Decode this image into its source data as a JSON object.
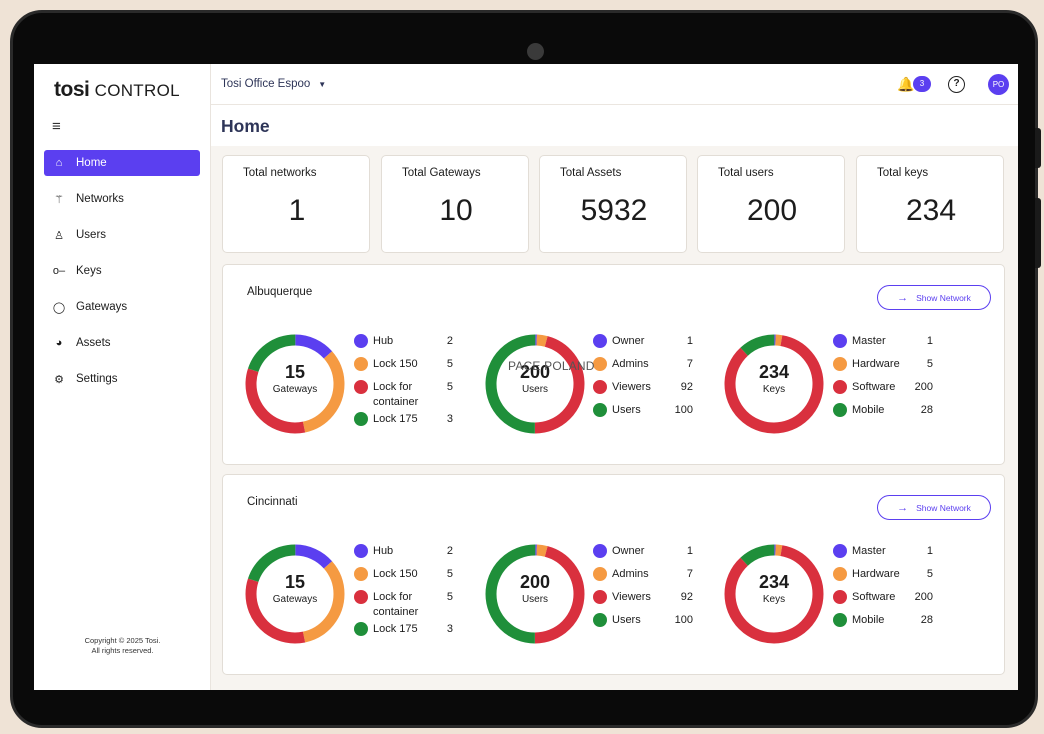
{
  "brand": {
    "logo_bold": "tosi",
    "logo_light": "CONTROL"
  },
  "sidebar": {
    "menu_icon": "menu-icon",
    "items": [
      {
        "label": "Home",
        "icon": "home-icon",
        "active": true
      },
      {
        "label": "Networks",
        "icon": "network-icon",
        "active": false
      },
      {
        "label": "Users",
        "icon": "users-icon",
        "active": false
      },
      {
        "label": "Keys",
        "icon": "key-icon",
        "active": false
      },
      {
        "label": "Gateways",
        "icon": "shield-icon",
        "active": false
      },
      {
        "label": "Assets",
        "icon": "assets-icon",
        "active": false
      },
      {
        "label": "Settings",
        "icon": "gear-icon",
        "active": false
      }
    ],
    "copyright_line1": "Copyright © 2025 Tosi.",
    "copyright_line2": "All rights reserved."
  },
  "topbar": {
    "office": "Tosi Office Espoo",
    "notifications": "3",
    "avatar": "PO"
  },
  "page": {
    "title": "Home"
  },
  "stats": [
    {
      "label": "Total networks",
      "value": "1"
    },
    {
      "label": "Total Gateways",
      "value": "10"
    },
    {
      "label": "Total Assets",
      "value": "5932"
    },
    {
      "label": "Total users",
      "value": "200"
    },
    {
      "label": "Total keys",
      "value": "234"
    }
  ],
  "colors": {
    "purple": "#5b3ff0",
    "orange": "#f59a42",
    "red": "#d9303e",
    "green": "#1f8f3a"
  },
  "panels": [
    {
      "name": "Albuquerque",
      "show_network": "Show Network",
      "gateways": {
        "total": "15",
        "unit": "Gateways",
        "items": [
          {
            "label": "Hub",
            "count": "2",
            "value": 2,
            "color": "#5b3ff0"
          },
          {
            "label": "Lock 150",
            "count": "5",
            "value": 5,
            "color": "#f59a42"
          },
          {
            "label": "Lock for container",
            "count": "5",
            "value": 5,
            "color": "#d9303e"
          },
          {
            "label": "Lock 175",
            "count": "3",
            "value": 3,
            "color": "#1f8f3a"
          }
        ]
      },
      "users": {
        "total": "200",
        "unit": "Users",
        "items": [
          {
            "label": "Owner",
            "count": "1",
            "value": 1,
            "color": "#5b3ff0"
          },
          {
            "label": "Admins",
            "count": "7",
            "value": 7,
            "color": "#f59a42"
          },
          {
            "label": "Viewers",
            "count": "92",
            "value": 92,
            "color": "#d9303e"
          },
          {
            "label": "Users",
            "count": "100",
            "value": 100,
            "color": "#1f8f3a"
          }
        ]
      },
      "keys": {
        "total": "234",
        "unit": "Keys",
        "items": [
          {
            "label": "Master",
            "count": "1",
            "value": 1,
            "color": "#5b3ff0"
          },
          {
            "label": "Hardware",
            "count": "5",
            "value": 5,
            "color": "#f59a42"
          },
          {
            "label": "Software",
            "count": "200",
            "value": 200,
            "color": "#d9303e"
          },
          {
            "label": "Mobile",
            "count": "28",
            "value": 28,
            "color": "#1f8f3a"
          }
        ]
      }
    },
    {
      "name": "Cincinnati",
      "show_network": "Show Network",
      "gateways": {
        "total": "15",
        "unit": "Gateways",
        "items": [
          {
            "label": "Hub",
            "count": "2",
            "value": 2,
            "color": "#5b3ff0"
          },
          {
            "label": "Lock 150",
            "count": "5",
            "value": 5,
            "color": "#f59a42"
          },
          {
            "label": "Lock for container",
            "count": "5",
            "value": 5,
            "color": "#d9303e"
          },
          {
            "label": "Lock 175",
            "count": "3",
            "value": 3,
            "color": "#1f8f3a"
          }
        ]
      },
      "users": {
        "total": "200",
        "unit": "Users",
        "items": [
          {
            "label": "Owner",
            "count": "1",
            "value": 1,
            "color": "#5b3ff0"
          },
          {
            "label": "Admins",
            "count": "7",
            "value": 7,
            "color": "#f59a42"
          },
          {
            "label": "Viewers",
            "count": "92",
            "value": 92,
            "color": "#d9303e"
          },
          {
            "label": "Users",
            "count": "100",
            "value": 100,
            "color": "#1f8f3a"
          }
        ]
      },
      "keys": {
        "total": "234",
        "unit": "Keys",
        "items": [
          {
            "label": "Master",
            "count": "1",
            "value": 1,
            "color": "#5b3ff0"
          },
          {
            "label": "Hardware",
            "count": "5",
            "value": 5,
            "color": "#f59a42"
          },
          {
            "label": "Software",
            "count": "200",
            "value": 200,
            "color": "#d9303e"
          },
          {
            "label": "Mobile",
            "count": "28",
            "value": 28,
            "color": "#1f8f3a"
          }
        ]
      }
    }
  ],
  "watermark": "PACE POLAND"
}
